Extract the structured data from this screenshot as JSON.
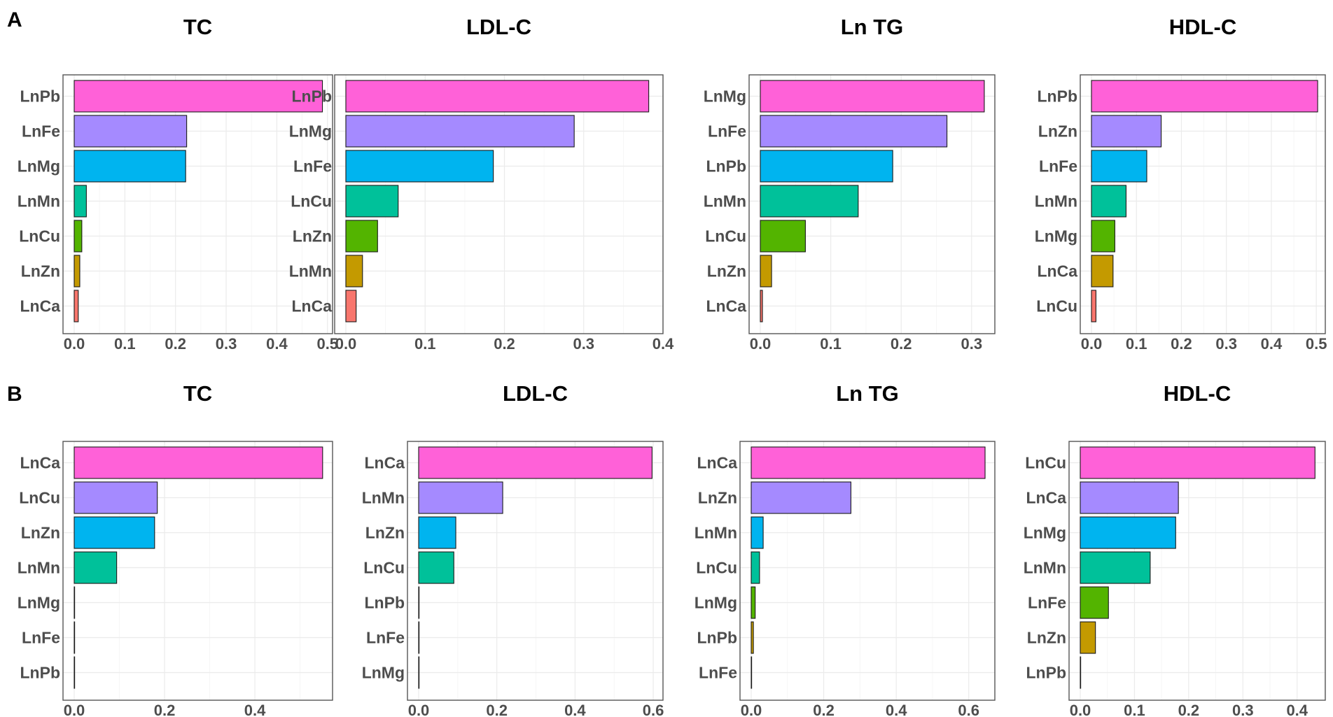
{
  "figure": {
    "panels": [
      {
        "letter": "A"
      },
      {
        "letter": "B"
      }
    ]
  },
  "colors": [
    "#FF61D8",
    "#A58AFF",
    "#00B4EF",
    "#00C19A",
    "#53B400",
    "#C49A00",
    "#F8766D"
  ],
  "chart_data": [
    {
      "panel": "A",
      "type": "bar",
      "orientation": "horizontal",
      "title": "TC",
      "categories": [
        "LnPb",
        "LnFe",
        "LnMg",
        "LnMn",
        "LnCu",
        "LnZn",
        "LnCa"
      ],
      "values": [
        0.49,
        0.222,
        0.22,
        0.024,
        0.015,
        0.011,
        0.008
      ],
      "xlim": [
        0,
        0.51
      ],
      "xticks": [
        0.0,
        0.1,
        0.2,
        0.3,
        0.4,
        0.5
      ],
      "xticklabels": [
        "0.0",
        "0.1",
        "0.2",
        "0.3",
        "0.4",
        "0.5"
      ]
    },
    {
      "panel": "A",
      "type": "bar",
      "orientation": "horizontal",
      "title": "LDL-C",
      "categories": [
        "LnPb",
        "LnMg",
        "LnFe",
        "LnCu",
        "LnZn",
        "LnMn",
        "LnCa"
      ],
      "values": [
        0.382,
        0.288,
        0.186,
        0.066,
        0.04,
        0.021,
        0.013
      ],
      "xlim": [
        0,
        0.4
      ],
      "xticks": [
        0.0,
        0.1,
        0.2,
        0.3,
        0.4
      ],
      "xticklabels": [
        "0.0",
        "0.1",
        "0.2",
        "0.3",
        "0.4"
      ]
    },
    {
      "panel": "A",
      "type": "bar",
      "orientation": "horizontal",
      "title": "Ln TG",
      "categories": [
        "LnMg",
        "LnFe",
        "LnPb",
        "LnMn",
        "LnCu",
        "LnZn",
        "LnCa"
      ],
      "values": [
        0.318,
        0.265,
        0.188,
        0.139,
        0.064,
        0.016,
        0.003
      ],
      "xlim": [
        0,
        0.333
      ],
      "xticks": [
        0.0,
        0.1,
        0.2,
        0.3
      ],
      "xticklabels": [
        "0.0",
        "0.1",
        "0.2",
        "0.3"
      ]
    },
    {
      "panel": "A",
      "type": "bar",
      "orientation": "horizontal",
      "title": "HDL-C",
      "categories": [
        "LnPb",
        "LnZn",
        "LnFe",
        "LnMn",
        "LnMg",
        "LnCa",
        "LnCu"
      ],
      "values": [
        0.503,
        0.155,
        0.123,
        0.077,
        0.052,
        0.048,
        0.01
      ],
      "xlim": [
        0,
        0.52
      ],
      "xticks": [
        0.0,
        0.1,
        0.2,
        0.3,
        0.4,
        0.5
      ],
      "xticklabels": [
        "0.0",
        "0.1",
        "0.2",
        "0.3",
        "0.4",
        "0.5"
      ]
    },
    {
      "panel": "B",
      "type": "bar",
      "orientation": "horizontal",
      "title": "TC",
      "categories": [
        "LnCa",
        "LnCu",
        "LnZn",
        "LnMn",
        "LnMg",
        "LnFe",
        "LnPb"
      ],
      "values": [
        0.55,
        0.184,
        0.178,
        0.094,
        0.0,
        0.0,
        0.0
      ],
      "xlim": [
        0,
        0.572
      ],
      "xticks": [
        0.0,
        0.2,
        0.4
      ],
      "xticklabels": [
        "0.0",
        "0.2",
        "0.4"
      ]
    },
    {
      "panel": "B",
      "type": "bar",
      "orientation": "horizontal",
      "title": "LDL-C",
      "categories": [
        "LnCa",
        "LnMn",
        "LnZn",
        "LnCu",
        "LnPb",
        "LnFe",
        "LnMg"
      ],
      "values": [
        0.597,
        0.215,
        0.095,
        0.09,
        0.0,
        0.0,
        0.0
      ],
      "xlim": [
        0,
        0.625
      ],
      "xticks": [
        0.0,
        0.2,
        0.4,
        0.6
      ],
      "xticklabels": [
        "0.0",
        "0.2",
        "0.4",
        "0.6"
      ]
    },
    {
      "panel": "B",
      "type": "bar",
      "orientation": "horizontal",
      "title": "Ln TG",
      "categories": [
        "LnCa",
        "LnZn",
        "LnMn",
        "LnCu",
        "LnMg",
        "LnPb",
        "LnFe"
      ],
      "values": [
        0.645,
        0.275,
        0.033,
        0.023,
        0.011,
        0.006,
        0.0
      ],
      "xlim": [
        0,
        0.672
      ],
      "xticks": [
        0.0,
        0.2,
        0.4,
        0.6
      ],
      "xticklabels": [
        "0.0",
        "0.2",
        "0.4",
        "0.6"
      ]
    },
    {
      "panel": "B",
      "type": "bar",
      "orientation": "horizontal",
      "title": "HDL-C",
      "categories": [
        "LnCu",
        "LnCa",
        "LnMg",
        "LnMn",
        "LnFe",
        "LnZn",
        "LnPb"
      ],
      "values": [
        0.433,
        0.181,
        0.176,
        0.129,
        0.052,
        0.028,
        0.0
      ],
      "xlim": [
        0,
        0.452
      ],
      "xticks": [
        0.0,
        0.1,
        0.2,
        0.3,
        0.4
      ],
      "xticklabels": [
        "0.0",
        "0.1",
        "0.2",
        "0.3",
        "0.4"
      ]
    }
  ]
}
